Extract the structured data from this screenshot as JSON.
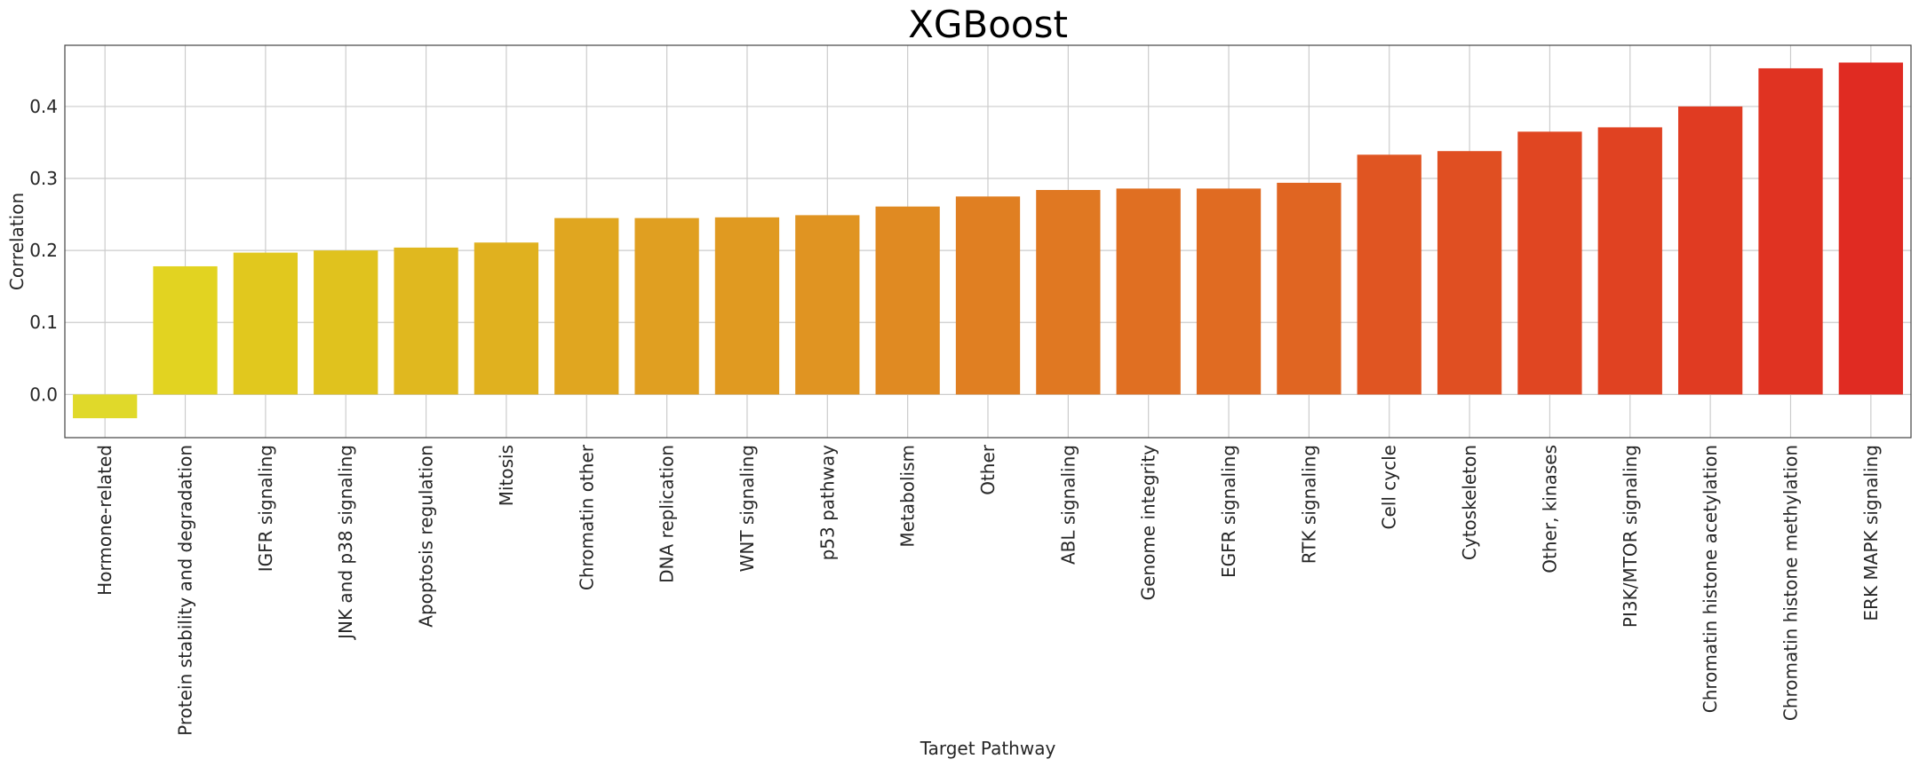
{
  "chart_data": {
    "type": "bar",
    "title": "XGBoost",
    "xlabel": "Target Pathway",
    "ylabel": "Correlation",
    "ylim": [
      -0.06,
      0.485
    ],
    "yticks": [
      "0.0",
      "0.1",
      "0.2",
      "0.3",
      "0.4"
    ],
    "ytick_values": [
      0.0,
      0.1,
      0.2,
      0.3,
      0.4
    ],
    "grid": true,
    "categories": [
      "Hormone-related",
      "Protein stability and degradation",
      "IGFR signaling",
      "JNK and p38 signaling",
      "Apoptosis regulation",
      "Mitosis",
      "Chromatin other",
      "DNA replication",
      "WNT signaling",
      "p53 pathway",
      "Metabolism",
      "Other",
      "ABL signaling",
      "Genome integrity",
      "EGFR signaling",
      "RTK signaling",
      "Cell cycle",
      "Cytoskeleton",
      "Other, kinases",
      "PI3K/MTOR signaling",
      "Chromatin histone acetylation",
      "Chromatin histone methylation",
      "ERK MAPK signaling"
    ],
    "values": [
      -0.033,
      0.178,
      0.197,
      0.2,
      0.204,
      0.211,
      0.245,
      0.245,
      0.246,
      0.249,
      0.261,
      0.275,
      0.284,
      0.286,
      0.286,
      0.294,
      0.333,
      0.338,
      0.365,
      0.371,
      0.4,
      0.453,
      0.461
    ],
    "colors": [
      "#e0d92a",
      "#e2d321",
      "#e1c81e",
      "#e0c21e",
      "#e0b81f",
      "#e0b11f",
      "#e0a620",
      "#e09f21",
      "#e09a21",
      "#e09422",
      "#e08a22",
      "#e07f22",
      "#e07822",
      "#e06f22",
      "#e06b22",
      "#e06522",
      "#e05522",
      "#e04f22",
      "#e04622",
      "#e04222",
      "#e03b22",
      "#e03322",
      "#e02b22"
    ]
  }
}
